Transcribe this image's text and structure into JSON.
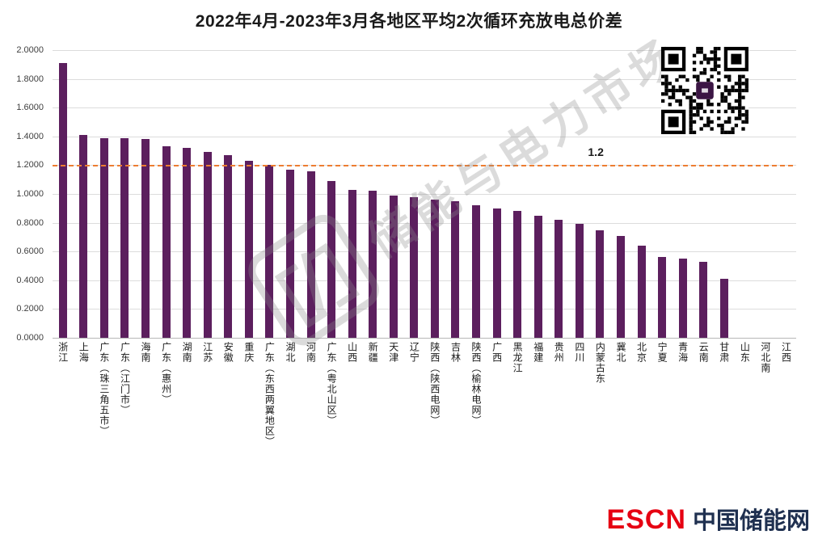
{
  "title": "2022年4月-2023年3月各地区平均2次循环充放电总价差",
  "reference_line": {
    "value": 1.2,
    "label": "1.2",
    "color": "#ed7d31"
  },
  "watermark": {
    "text": "储能与电力市场"
  },
  "footer": {
    "brand": "ESCN",
    "brand_suffix": "中国储能网",
    "brand_color": "#e60012",
    "suffix_color": "#1f3050"
  },
  "chart_data": {
    "type": "bar",
    "title": "2022年4月-2023年3月各地区平均2次循环充放电总价差",
    "categories": [
      "浙江",
      "上海",
      "广东（珠三角五市）",
      "广东（江门市）",
      "海南",
      "广东（惠州）",
      "湖南",
      "江苏",
      "安徽",
      "重庆",
      "广东（东西两翼地区）",
      "湖北",
      "河南",
      "广东（粤北山区）",
      "山西",
      "新疆",
      "天津",
      "辽宁",
      "陕西（陕西电网）",
      "吉林",
      "陕西（榆林电网）",
      "广西",
      "黑龙江",
      "福建",
      "贵州",
      "四川",
      "内蒙古东",
      "冀北",
      "北京",
      "宁夏",
      "青海",
      "云南",
      "甘肃",
      "山东",
      "河北南",
      "江西"
    ],
    "values": [
      1.91,
      1.41,
      1.39,
      1.39,
      1.38,
      1.33,
      1.32,
      1.29,
      1.27,
      1.23,
      1.2,
      1.17,
      1.16,
      1.09,
      1.03,
      1.02,
      0.99,
      0.98,
      0.96,
      0.95,
      0.92,
      0.9,
      0.88,
      0.85,
      0.82,
      0.79,
      0.75,
      0.71,
      0.64,
      0.56,
      0.55,
      0.53,
      0.41,
      0,
      0,
      0
    ],
    "xlabel": "",
    "ylabel": "",
    "ylim": [
      0,
      2.0
    ],
    "grid": true,
    "legend": "none",
    "bar_color": "#5c1f5e",
    "y_tick_labels": [
      "0.0000",
      "0.2000",
      "0.4000",
      "0.6000",
      "0.8000",
      "1.0000",
      "1.2000",
      "1.4000",
      "1.6000",
      "1.8000",
      "2.0000"
    ],
    "reference_line": {
      "value": 1.2,
      "label": "1.2"
    }
  }
}
